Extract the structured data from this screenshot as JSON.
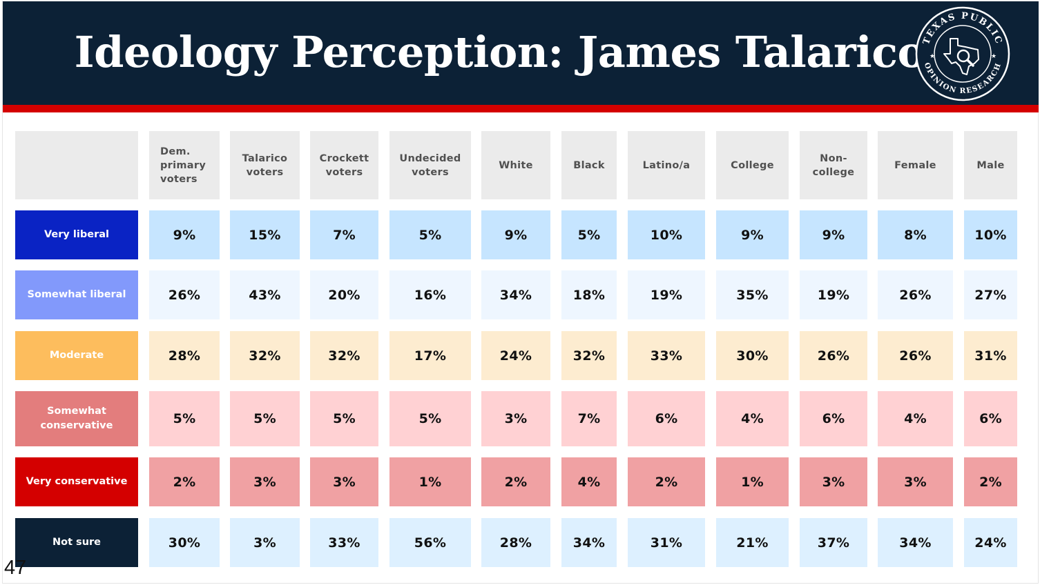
{
  "title": "Ideology Perception: James Talarico",
  "seal": {
    "top_text": "TEXAS PUBLIC",
    "bottom_text": "OPINION RESEARCH"
  },
  "page_number": "47",
  "colors": {
    "header_bg": "#0c2136",
    "accent_red": "#d40000"
  },
  "chart_data": {
    "type": "table",
    "title": "Ideology Perception: James Talarico",
    "columns": [
      "Dem. primary voters",
      "Talarico voters",
      "Crockett voters",
      "Undecided voters",
      "White",
      "Black",
      "Latino/a",
      "College",
      "Non-college",
      "Female",
      "Male"
    ],
    "column_lines": [
      [
        "Dem.",
        "primary",
        "voters"
      ],
      [
        "Talarico",
        "voters"
      ],
      [
        "Crockett",
        "voters"
      ],
      [
        "Undecided",
        "voters"
      ],
      [
        "White"
      ],
      [
        "Black"
      ],
      [
        "Latino/a"
      ],
      [
        "College"
      ],
      [
        "Non-",
        "college"
      ],
      [
        "Female"
      ],
      [
        "Male"
      ]
    ],
    "rows": [
      {
        "label": "Very liberal",
        "label_lines": [
          "Very liberal"
        ],
        "label_color": "#0a23c4",
        "cell_color": "#c6e5ff",
        "values": [
          "9%",
          "15%",
          "7%",
          "5%",
          "9%",
          "5%",
          "10%",
          "9%",
          "9%",
          "8%",
          "10%"
        ]
      },
      {
        "label": "Somewhat liberal",
        "label_lines": [
          "Somewhat liberal"
        ],
        "label_color": "#8299fb",
        "cell_color": "#eef6ff",
        "values": [
          "26%",
          "43%",
          "20%",
          "16%",
          "34%",
          "18%",
          "19%",
          "35%",
          "19%",
          "26%",
          "27%"
        ]
      },
      {
        "label": "Moderate",
        "label_lines": [
          "Moderate"
        ],
        "label_color": "#fdbd5d",
        "cell_color": "#fdecd0",
        "values": [
          "28%",
          "32%",
          "32%",
          "17%",
          "24%",
          "32%",
          "33%",
          "30%",
          "26%",
          "26%",
          "31%"
        ]
      },
      {
        "label": "Somewhat conservative",
        "label_lines": [
          "Somewhat",
          "conservative"
        ],
        "label_color": "#e37d7d",
        "cell_color": "#ffd1d3",
        "values": [
          "5%",
          "5%",
          "5%",
          "5%",
          "3%",
          "7%",
          "6%",
          "4%",
          "6%",
          "4%",
          "6%"
        ]
      },
      {
        "label": "Very conservative",
        "label_lines": [
          "Very conservative"
        ],
        "label_color": "#d40000",
        "cell_color": "#f0a1a3",
        "values": [
          "2%",
          "3%",
          "3%",
          "1%",
          "2%",
          "4%",
          "2%",
          "1%",
          "3%",
          "3%",
          "2%"
        ]
      },
      {
        "label": "Not sure",
        "label_lines": [
          "Not sure"
        ],
        "label_color": "#0c2136",
        "cell_color": "#ddf0ff",
        "values": [
          "30%",
          "3%",
          "33%",
          "56%",
          "28%",
          "34%",
          "31%",
          "21%",
          "37%",
          "34%",
          "24%"
        ]
      }
    ]
  }
}
